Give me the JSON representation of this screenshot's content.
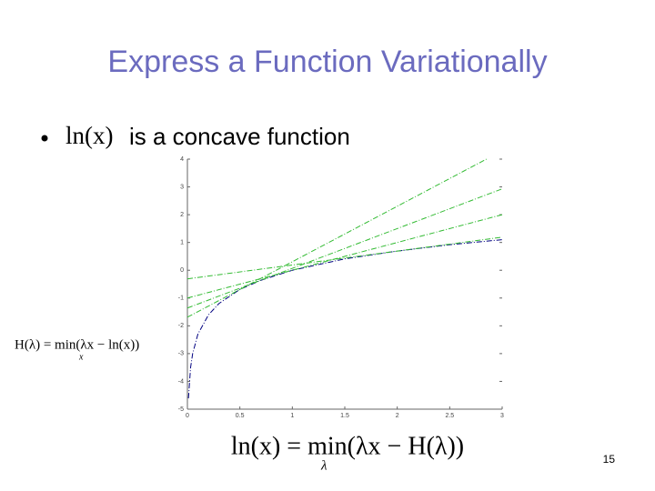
{
  "slide": {
    "title": "Express a Function Variationally",
    "bullet": {
      "math": "ln(x)",
      "text": "is a concave function"
    },
    "formula_left": {
      "main": "H(λ) = min(λx − ln(x))",
      "sub": "x"
    },
    "formula_bottom": {
      "main": "ln(x) = min(λx − H(λ))",
      "sub": "λ"
    },
    "page_number": "15"
  },
  "chart_data": {
    "type": "line",
    "xlim": [
      0,
      3
    ],
    "ylim": [
      -5,
      4
    ],
    "xticks": [
      0,
      0.5,
      1,
      1.5,
      2,
      2.5,
      3
    ],
    "yticks": [
      4,
      3,
      2,
      1,
      0,
      -1,
      -2,
      -3,
      -4,
      -5
    ],
    "series": [
      {
        "color": "#000080",
        "dash": "dashdot",
        "x": [
          0.01,
          0.03,
          0.05,
          0.1,
          0.2,
          0.3,
          0.5,
          0.7,
          1,
          1.5,
          2,
          2.5,
          3
        ],
        "values": [
          -4.61,
          -3.51,
          -3.0,
          -2.3,
          -1.61,
          -1.2,
          -0.69,
          -0.36,
          0,
          0.41,
          0.69,
          0.92,
          1.1
        ]
      },
      {
        "color": "#33bb33",
        "dash": "dashdot",
        "x": [
          0,
          2.85
        ],
        "values": [
          -1.69,
          4
        ]
      },
      {
        "color": "#33bb33",
        "dash": "dashdot",
        "x": [
          0,
          3
        ],
        "values": [
          -1.36,
          2.93
        ]
      },
      {
        "color": "#33bb33",
        "dash": "dashdot",
        "x": [
          0,
          3
        ],
        "values": [
          -1,
          2
        ]
      },
      {
        "color": "#33bb33",
        "dash": "dashdot",
        "x": [
          0,
          3
        ],
        "values": [
          -0.31,
          1.19
        ]
      }
    ]
  }
}
